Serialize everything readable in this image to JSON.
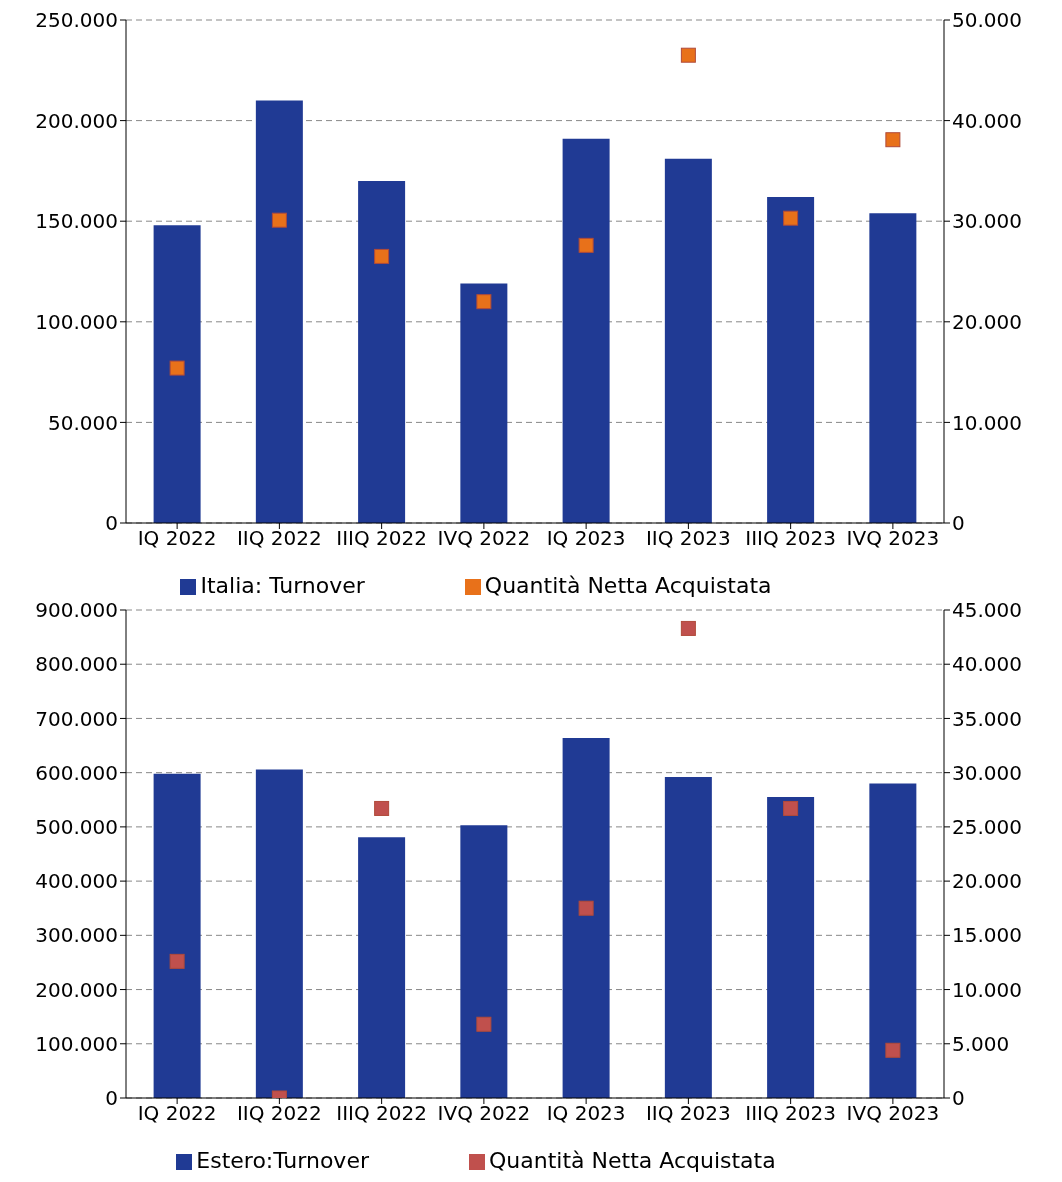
{
  "chart_data": [
    {
      "type": "bar",
      "categories": [
        "IQ 2022",
        "IIQ 2022",
        "IIIQ 2022",
        "IVQ 2022",
        "IQ 2023",
        "IIQ 2023",
        "IIIQ 2023",
        "IVQ 2023"
      ],
      "series": [
        {
          "name": "Italia: Turnover",
          "color": "#203a94",
          "values": [
            148000,
            210000,
            170000,
            119000,
            191000,
            181000,
            162000,
            154000
          ]
        },
        {
          "name": "Quantità Netta Acquistata",
          "type": "scatter",
          "axis": "y2",
          "color": "#e8711a",
          "values": [
            15400,
            30100,
            26500,
            22000,
            27600,
            46500,
            30300,
            38100
          ]
        }
      ],
      "ylim": [
        0,
        250000
      ],
      "yticks": [
        {
          "value": 0,
          "label": "0"
        },
        {
          "value": 50000,
          "label": "50.000"
        },
        {
          "value": 100000,
          "label": "100.000"
        },
        {
          "value": 150000,
          "label": "150.000"
        },
        {
          "value": 200000,
          "label": "200.000"
        },
        {
          "value": 250000,
          "label": "250.000"
        }
      ],
      "y2lim": [
        0,
        50000
      ],
      "y2ticks": [
        {
          "value": 0,
          "label": "0"
        },
        {
          "value": 10000,
          "label": "10.000"
        },
        {
          "value": 20000,
          "label": "20.000"
        },
        {
          "value": 30000,
          "label": "30.000"
        },
        {
          "value": 40000,
          "label": "40.000"
        },
        {
          "value": 50000,
          "label": "50.000"
        }
      ],
      "grid": "y",
      "legend": "bottom",
      "marker": "square"
    },
    {
      "type": "bar",
      "categories": [
        "IQ 2022",
        "IIQ 2022",
        "IIIQ 2022",
        "IVQ 2022",
        "IQ 2023",
        "IIQ 2023",
        "IIIQ 2023",
        "IVQ 2023"
      ],
      "series": [
        {
          "name": "Estero:Turnover",
          "color": "#203a94",
          "values": [
            598000,
            606000,
            481000,
            503000,
            664000,
            592000,
            555000,
            580000
          ]
        },
        {
          "name": "Quantità Netta Acquistata",
          "type": "scatter",
          "axis": "y2",
          "color": "#c0504d",
          "values": [
            12600,
            0,
            26700,
            6800,
            17500,
            43300,
            26700,
            4400
          ]
        }
      ],
      "ylim": [
        0,
        900000
      ],
      "yticks": [
        {
          "value": 0,
          "label": "0"
        },
        {
          "value": 100000,
          "label": "100.000"
        },
        {
          "value": 200000,
          "label": "200.000"
        },
        {
          "value": 300000,
          "label": "300.000"
        },
        {
          "value": 400000,
          "label": "400.000"
        },
        {
          "value": 500000,
          "label": "500.000"
        },
        {
          "value": 600000,
          "label": "600.000"
        },
        {
          "value": 700000,
          "label": "700.000"
        },
        {
          "value": 800000,
          "label": "800.000"
        },
        {
          "value": 900000,
          "label": "900.000"
        }
      ],
      "y2lim": [
        0,
        45000
      ],
      "y2ticks": [
        {
          "value": 0,
          "label": "0"
        },
        {
          "value": 5000,
          "label": "5.000"
        },
        {
          "value": 10000,
          "label": "10.000"
        },
        {
          "value": 15000,
          "label": "15.000"
        },
        {
          "value": 20000,
          "label": "20.000"
        },
        {
          "value": 25000,
          "label": "25.000"
        },
        {
          "value": 30000,
          "label": "30.000"
        },
        {
          "value": 35000,
          "label": "35.000"
        },
        {
          "value": 40000,
          "label": "40.000"
        },
        {
          "value": 45000,
          "label": "45.000"
        }
      ],
      "grid": "y",
      "legend": "bottom",
      "marker": "square"
    }
  ]
}
